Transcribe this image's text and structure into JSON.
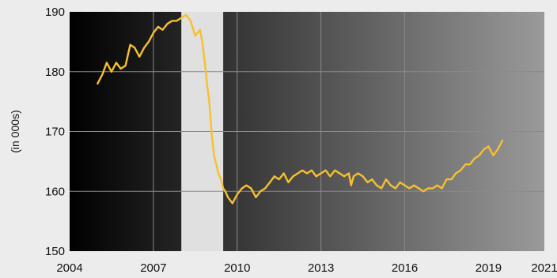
{
  "chart_data": {
    "type": "line",
    "title": "",
    "xlabel": "",
    "ylabel": "(in 000s)",
    "xlim": [
      2004,
      2021
    ],
    "ylim": [
      150,
      190
    ],
    "x_ticks": [
      "2004",
      "2007",
      "2010",
      "2013",
      "2016",
      "2019",
      "2021"
    ],
    "y_ticks": [
      "150",
      "160",
      "170",
      "180",
      "190"
    ],
    "grid": true,
    "legend": "none",
    "recession_shading": {
      "x_start": 2008.0,
      "x_end": 2009.5,
      "color": "#e0e0e0"
    },
    "colors": {
      "line": "#f6c02e",
      "plot_bg_start": "#000000",
      "plot_bg_end": "#9a9a9a",
      "grid": "#8a8a8a"
    },
    "series": [
      {
        "x": [
          2005.0,
          2005.17,
          2005.33,
          2005.5,
          2005.67,
          2005.83,
          2006.0,
          2006.17,
          2006.33,
          2006.5,
          2006.67,
          2006.83,
          2007.0,
          2007.17,
          2007.33,
          2007.5,
          2007.67,
          2007.83,
          2008.0,
          2008.17,
          2008.33,
          2008.5,
          2008.67,
          2008.75,
          2008.83,
          2008.92,
          2009.0,
          2009.08,
          2009.17,
          2009.25,
          2009.33,
          2009.42,
          2009.5,
          2009.58,
          2009.67,
          2009.83,
          2010.0,
          2010.17,
          2010.33,
          2010.5,
          2010.67,
          2010.83,
          2011.0,
          2011.17,
          2011.33,
          2011.5,
          2011.67,
          2011.83,
          2012.0,
          2012.17,
          2012.33,
          2012.5,
          2012.67,
          2012.83,
          2013.0,
          2013.17,
          2013.33,
          2013.5,
          2013.67,
          2013.83,
          2014.0,
          2014.08,
          2014.17,
          2014.33,
          2014.5,
          2014.67,
          2014.83,
          2015.0,
          2015.17,
          2015.33,
          2015.5,
          2015.67,
          2015.83,
          2016.0,
          2016.17,
          2016.33,
          2016.5,
          2016.67,
          2016.83,
          2017.0,
          2017.17,
          2017.33,
          2017.5,
          2017.67,
          2017.83,
          2018.0,
          2018.17,
          2018.33,
          2018.5,
          2018.67,
          2018.83,
          2019.0,
          2019.17,
          2019.33,
          2019.5
        ],
        "y": [
          178.0,
          179.5,
          181.5,
          180.0,
          181.5,
          180.5,
          181.0,
          184.5,
          184.0,
          182.5,
          184.0,
          185.0,
          186.5,
          187.5,
          187.0,
          188.0,
          188.5,
          188.5,
          189.0,
          189.5,
          188.5,
          186.0,
          187.0,
          185.0,
          182.0,
          178.0,
          175.0,
          170.0,
          166.0,
          164.5,
          163.0,
          162.0,
          160.5,
          160.0,
          159.0,
          158.0,
          159.5,
          160.5,
          161.0,
          160.5,
          159.0,
          160.0,
          160.5,
          161.5,
          162.5,
          162.0,
          163.0,
          161.5,
          162.5,
          163.0,
          163.5,
          163.0,
          163.5,
          162.5,
          163.0,
          163.5,
          162.5,
          163.5,
          163.0,
          162.5,
          163.0,
          161.0,
          162.5,
          163.0,
          162.5,
          161.5,
          162.0,
          161.0,
          160.5,
          162.0,
          161.0,
          160.5,
          161.5,
          161.0,
          160.5,
          161.0,
          160.5,
          160.0,
          160.5,
          160.5,
          161.0,
          160.5,
          162.0,
          162.0,
          163.0,
          163.5,
          164.5,
          164.5,
          165.5,
          166.0,
          167.0,
          167.5,
          166.0,
          167.0,
          168.5
        ]
      }
    ]
  }
}
